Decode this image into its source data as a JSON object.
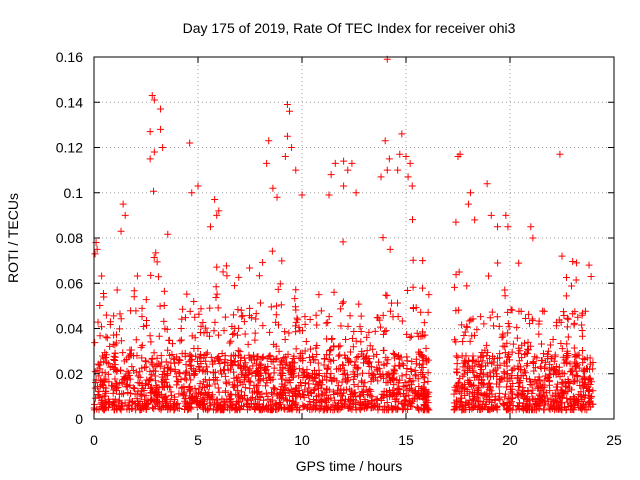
{
  "chart_data": {
    "type": "scatter",
    "title": "Day 175 of 2019, Rate Of TEC Index for receiver ohi3",
    "xlabel": "GPS time / hours",
    "ylabel": "ROTI / TECUs",
    "xlim": [
      0,
      25
    ],
    "ylim": [
      0,
      0.16
    ],
    "x_ticks": [
      "0",
      "5",
      "10",
      "15",
      "20",
      "25"
    ],
    "y_ticks": [
      "0",
      "0.02",
      "0.04",
      "0.06",
      "0.08",
      "0.1",
      "0.12",
      "0.14",
      "0.16"
    ],
    "grid": true,
    "marker": "plus",
    "series_color": "#ff0000",
    "data_gap_hours": [
      16.1,
      17.3
    ],
    "highlighted_points": [
      {
        "x": 2.8,
        "y": 0.143
      },
      {
        "x": 2.9,
        "y": 0.141
      },
      {
        "x": 3.2,
        "y": 0.137
      },
      {
        "x": 3.2,
        "y": 0.128
      },
      {
        "x": 2.7,
        "y": 0.127
      },
      {
        "x": 3.3,
        "y": 0.12
      },
      {
        "x": 2.7,
        "y": 0.115
      },
      {
        "x": 2.9,
        "y": 0.118
      },
      {
        "x": 4.6,
        "y": 0.122
      },
      {
        "x": 1.4,
        "y": 0.095
      },
      {
        "x": 1.5,
        "y": 0.09
      },
      {
        "x": 1.3,
        "y": 0.083
      },
      {
        "x": 0.1,
        "y": 0.078
      },
      {
        "x": 0.05,
        "y": 0.073
      },
      {
        "x": 0.15,
        "y": 0.075
      },
      {
        "x": 5.0,
        "y": 0.103
      },
      {
        "x": 4.7,
        "y": 0.1
      },
      {
        "x": 5.8,
        "y": 0.097
      },
      {
        "x": 5.9,
        "y": 0.09
      },
      {
        "x": 6.0,
        "y": 0.092
      },
      {
        "x": 5.6,
        "y": 0.085
      },
      {
        "x": 8.4,
        "y": 0.123
      },
      {
        "x": 8.3,
        "y": 0.113
      },
      {
        "x": 8.6,
        "y": 0.102
      },
      {
        "x": 8.8,
        "y": 0.098
      },
      {
        "x": 9.3,
        "y": 0.139
      },
      {
        "x": 9.4,
        "y": 0.136
      },
      {
        "x": 9.3,
        "y": 0.125
      },
      {
        "x": 9.5,
        "y": 0.12
      },
      {
        "x": 9.2,
        "y": 0.116
      },
      {
        "x": 9.7,
        "y": 0.11
      },
      {
        "x": 10.0,
        "y": 0.099
      },
      {
        "x": 11.6,
        "y": 0.113
      },
      {
        "x": 11.4,
        "y": 0.108
      },
      {
        "x": 12.0,
        "y": 0.114
      },
      {
        "x": 12.2,
        "y": 0.11
      },
      {
        "x": 12.4,
        "y": 0.113
      },
      {
        "x": 12.0,
        "y": 0.103
      },
      {
        "x": 11.3,
        "y": 0.099
      },
      {
        "x": 12.6,
        "y": 0.1
      },
      {
        "x": 14.1,
        "y": 0.159
      },
      {
        "x": 14.0,
        "y": 0.123
      },
      {
        "x": 14.2,
        "y": 0.115
      },
      {
        "x": 14.1,
        "y": 0.11
      },
      {
        "x": 13.8,
        "y": 0.107
      },
      {
        "x": 14.8,
        "y": 0.126
      },
      {
        "x": 14.7,
        "y": 0.117
      },
      {
        "x": 15.0,
        "y": 0.116
      },
      {
        "x": 15.2,
        "y": 0.113
      },
      {
        "x": 14.6,
        "y": 0.11
      },
      {
        "x": 15.1,
        "y": 0.107
      },
      {
        "x": 15.3,
        "y": 0.103
      },
      {
        "x": 17.6,
        "y": 0.117
      },
      {
        "x": 17.5,
        "y": 0.116
      },
      {
        "x": 18.1,
        "y": 0.1
      },
      {
        "x": 18.0,
        "y": 0.095
      },
      {
        "x": 18.9,
        "y": 0.104
      },
      {
        "x": 18.3,
        "y": 0.088
      },
      {
        "x": 19.1,
        "y": 0.09
      },
      {
        "x": 19.4,
        "y": 0.085
      },
      {
        "x": 19.8,
        "y": 0.09
      },
      {
        "x": 19.9,
        "y": 0.085
      },
      {
        "x": 21.0,
        "y": 0.085
      },
      {
        "x": 21.1,
        "y": 0.08
      },
      {
        "x": 22.4,
        "y": 0.117
      },
      {
        "x": 22.5,
        "y": 0.072
      },
      {
        "x": 23.2,
        "y": 0.069
      },
      {
        "x": 23.8,
        "y": 0.068
      },
      {
        "x": 23.9,
        "y": 0.063
      },
      {
        "x": 17.4,
        "y": 0.087
      },
      {
        "x": 16.1,
        "y": 0.055
      },
      {
        "x": 15.8,
        "y": 0.07
      }
    ]
  }
}
